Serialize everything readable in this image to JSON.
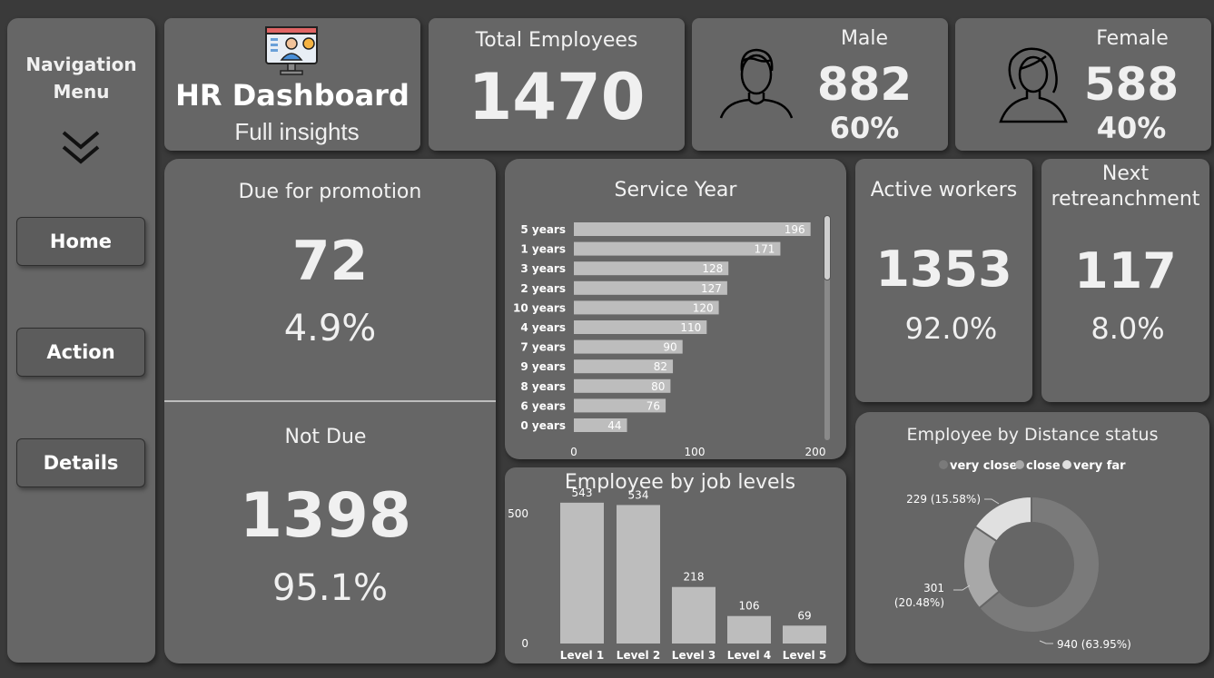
{
  "nav": {
    "title_line1": "Navigation",
    "title_line2": "Menu",
    "buttons": [
      "Home",
      "Action",
      "Details"
    ]
  },
  "header": {
    "title": "HR Dashboard",
    "subtitle": "Full insights"
  },
  "total": {
    "label": "Total Employees",
    "value": "1470"
  },
  "male": {
    "label": "Male",
    "value": "882",
    "pct": "60%"
  },
  "female": {
    "label": "Female",
    "value": "588",
    "pct": "40%"
  },
  "promotion": {
    "due_label": "Due for promotion",
    "due_value": "72",
    "due_pct": "4.9%",
    "notdue_label": "Not Due",
    "notdue_value": "1398",
    "notdue_pct": "95.1%"
  },
  "active": {
    "label": "Active workers",
    "value": "1353",
    "pct": "92.0%"
  },
  "retrench": {
    "label_line1": "Next",
    "label_line2": "retreanchment",
    "value": "117",
    "pct": "8.0%"
  },
  "colors": {
    "bg": "#3a3a3a",
    "card": "#666666",
    "bar": "#bdbdbd",
    "text": "#f0f0f0"
  },
  "chart_data": [
    {
      "type": "bar",
      "orientation": "horizontal",
      "title": "Service Year",
      "categories": [
        "5 years",
        "1 years",
        "3 years",
        "2 years",
        "10 years",
        "4 years",
        "7 years",
        "9 years",
        "8 years",
        "6 years",
        "0 years"
      ],
      "values": [
        196,
        171,
        128,
        127,
        120,
        110,
        90,
        82,
        80,
        76,
        44
      ],
      "xticks": [
        "0",
        "100",
        "200"
      ],
      "xlim": [
        0,
        200
      ]
    },
    {
      "type": "bar",
      "title": "Employee by job levels",
      "categories": [
        "Level 1",
        "Level 2",
        "Level 3",
        "Level 4",
        "Level 5"
      ],
      "values": [
        543,
        534,
        218,
        106,
        69
      ],
      "yticks": [
        "0",
        "500"
      ],
      "ylim": [
        0,
        560
      ]
    },
    {
      "type": "pie",
      "donut": true,
      "title": "Employee by Distance status",
      "legend": [
        "very close",
        "close",
        "very far"
      ],
      "values": [
        940,
        301,
        229
      ],
      "labels": [
        "940 (63.95%)",
        "301 (20.48%)",
        "229 (15.58%)"
      ],
      "colors": [
        "#7a7a7a",
        "#a8a8a8",
        "#e0e0e0"
      ]
    }
  ]
}
